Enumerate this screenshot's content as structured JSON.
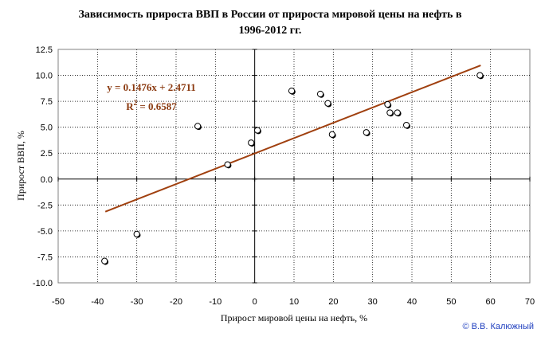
{
  "chart_data": {
    "type": "scatter",
    "title_line1": "Зависимость прироста ВВП в России от прироста мировой цены на нефть в",
    "title_line2": "1996-2012 гг.",
    "xlabel": "Прирост мировой цены на нефть, %",
    "ylabel": "Прирост  ВВП, %",
    "xlim": [
      -50,
      70
    ],
    "ylim": [
      -10,
      12.5
    ],
    "x_ticks": [
      "-50",
      "-40",
      "-30",
      "-20",
      "-10",
      "0",
      "10",
      "20",
      "30",
      "40",
      "50",
      "60",
      "70"
    ],
    "y_ticks": [
      "12.5",
      "10.0",
      "7.5",
      "5.0",
      "2.5",
      "0.0",
      "-2.5",
      "-5.0",
      "-7.5",
      "-10.0"
    ],
    "grid": true,
    "points": [
      {
        "x": -38.2,
        "y": -7.9
      },
      {
        "x": -30.0,
        "y": -5.3
      },
      {
        "x": -14.5,
        "y": 5.1
      },
      {
        "x": -6.9,
        "y": 1.4
      },
      {
        "x": -0.9,
        "y": 3.5
      },
      {
        "x": 0.7,
        "y": 4.7
      },
      {
        "x": 9.4,
        "y": 8.5
      },
      {
        "x": 16.7,
        "y": 8.2
      },
      {
        "x": 18.6,
        "y": 7.3
      },
      {
        "x": 19.7,
        "y": 4.3
      },
      {
        "x": 28.4,
        "y": 4.5
      },
      {
        "x": 33.8,
        "y": 7.2
      },
      {
        "x": 34.4,
        "y": 6.4
      },
      {
        "x": 36.3,
        "y": 6.4
      },
      {
        "x": 38.6,
        "y": 5.2
      },
      {
        "x": 57.3,
        "y": 10.0
      }
    ],
    "trendline": {
      "slope": 0.1476,
      "intercept": 2.4711,
      "x_range": [
        -38,
        57.5
      ],
      "color": "#A0400F",
      "equation": "y = 0.1476x + 2.4711",
      "r2_prefix": "R",
      "r2_exp": "2",
      "r2_value": " = 0.6587"
    },
    "colors": {
      "plot_bg": "#ffffff",
      "grid": "#000000",
      "marker_fill": "#ffffff",
      "marker_edge": "#000000"
    }
  },
  "copyright": "© В.В. Калюжный"
}
